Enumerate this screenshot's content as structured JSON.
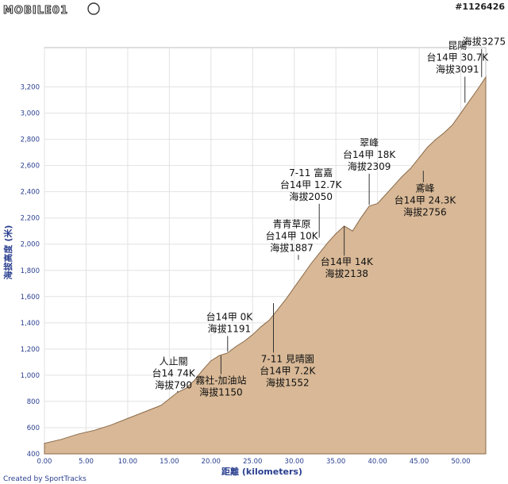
{
  "header": {
    "logo_text": "MOBILE01",
    "post_id": "#1126426"
  },
  "footer": {
    "credit": "Created by SportTracks"
  },
  "chart_data": {
    "type": "area",
    "title": "",
    "xlabel": "距離 (kilometers)",
    "ylabel": "海拔高度 (米)",
    "xlim": [
      0,
      53
    ],
    "ylim": [
      400,
      3500
    ],
    "grid": true,
    "colors": {
      "fill": "#d8b896",
      "line": "#8a6a4a",
      "grid": "#e2e2e2",
      "leader": "#333333",
      "tick_text": "#2a3f8f"
    },
    "x_ticks": [
      "0.00",
      "5.00",
      "10.00",
      "15.00",
      "20.00",
      "25.00",
      "30.00",
      "35.00",
      "40.00",
      "45.00",
      "50.00"
    ],
    "x_tick_values": [
      0,
      5,
      10,
      15,
      20,
      25,
      30,
      35,
      40,
      45,
      50
    ],
    "y_ticks": [
      "400",
      "600",
      "800",
      "1,000",
      "1,200",
      "1,400",
      "1,600",
      "1,800",
      "2,000",
      "2,200",
      "2,400",
      "2,600",
      "2,800",
      "3,000",
      "3,200"
    ],
    "y_tick_values": [
      400,
      600,
      800,
      1000,
      1200,
      1400,
      1600,
      1800,
      2000,
      2200,
      2400,
      2600,
      2800,
      3000,
      3200
    ],
    "profile": {
      "x": [
        0,
        2,
        4,
        6,
        8,
        10,
        12,
        14,
        15,
        16,
        17,
        18,
        19,
        20,
        21,
        22,
        23,
        24,
        25,
        26,
        27,
        28,
        29,
        30,
        31,
        32,
        33,
        34,
        35,
        36,
        37,
        38,
        39,
        40,
        41,
        42,
        43,
        44,
        45,
        46,
        47,
        48,
        49,
        50,
        51,
        52,
        53
      ],
      "y": [
        480,
        510,
        550,
        580,
        620,
        670,
        720,
        770,
        820,
        870,
        900,
        960,
        1040,
        1110,
        1150,
        1170,
        1220,
        1260,
        1310,
        1370,
        1420,
        1500,
        1580,
        1670,
        1760,
        1850,
        1930,
        2010,
        2080,
        2138,
        2100,
        2200,
        2290,
        2310,
        2380,
        2450,
        2520,
        2580,
        2660,
        2740,
        2800,
        2850,
        2910,
        3000,
        3091,
        3180,
        3275
      ]
    },
    "annotations": [
      {
        "lines": [
          "人止關",
          "台14 74K",
          "海拔790"
        ],
        "x": 16.0,
        "y": 880,
        "tx": 15.5,
        "ty": 1080
      },
      {
        "lines": [
          "霧社-加油站",
          "海拔1150"
        ],
        "x": 21.2,
        "y": 1150,
        "tx": 21.2,
        "ty": 935
      },
      {
        "lines": [
          "台14甲 0K",
          "海拔1191"
        ],
        "x": 22.0,
        "y": 1180,
        "tx": 22.2,
        "ty": 1420
      },
      {
        "lines": [
          "7-11 見晴園",
          "台14甲 7.2K",
          "海拔1552"
        ],
        "x": 27.5,
        "y": 1550,
        "tx": 29.2,
        "ty": 1100
      },
      {
        "lines": [
          "青青草原",
          "台14甲 10K",
          "海拔1887"
        ],
        "x": 30.5,
        "y": 1880,
        "tx": 29.7,
        "ty": 2130
      },
      {
        "lines": [
          "7-11 富嘉",
          "台14甲 12.7K",
          "海拔2050"
        ],
        "x": 33.0,
        "y": 2050,
        "tx": 32.0,
        "ty": 2520
      },
      {
        "lines": [
          "台14甲 14K",
          "海拔2138"
        ],
        "x": 36.0,
        "y": 2138,
        "tx": 36.3,
        "ty": 1840
      },
      {
        "lines": [
          "翠峰",
          "台14甲 18K",
          "海拔2309"
        ],
        "x": 39.0,
        "y": 2300,
        "tx": 39.0,
        "ty": 2750
      },
      {
        "lines": [
          "鳶峰",
          "台14甲 24.3K",
          "海拔2756"
        ],
        "x": 45.5,
        "y": 2560,
        "tx": 45.7,
        "ty": 2400
      },
      {
        "lines": [
          "昆陽",
          "台14甲 30.7K",
          "海拔3091"
        ],
        "x": 50.5,
        "y": 3080,
        "tx": 49.6,
        "ty": 3490
      },
      {
        "lines": [
          "海拔3275"
        ],
        "x": 52.5,
        "y": 3275,
        "tx": 52.8,
        "ty": 3520
      }
    ]
  }
}
